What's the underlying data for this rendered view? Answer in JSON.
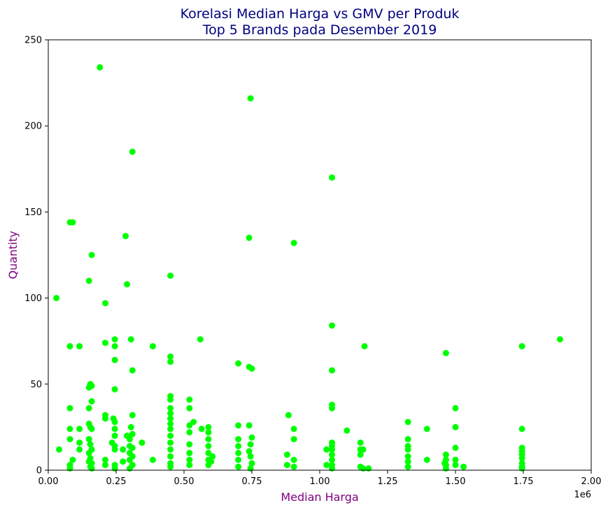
{
  "chart_data": {
    "type": "scatter",
    "title_line1": "Korelasi Median Harga vs GMV per Produk",
    "title_line2": "Top 5 Brands pada Desember 2019",
    "xlabel": "Median Harga",
    "ylabel": "Quantity",
    "x_offset_text": "1e6",
    "xlim": [
      0,
      2000000
    ],
    "ylim": [
      0,
      250
    ],
    "x_ticks": [
      0,
      250000,
      500000,
      750000,
      1000000,
      1250000,
      1500000,
      1750000,
      2000000
    ],
    "x_tick_labels": [
      "0.00",
      "0.25",
      "0.50",
      "0.75",
      "1.00",
      "1.25",
      "1.50",
      "1.75",
      "2.00"
    ],
    "y_ticks": [
      0,
      50,
      100,
      150,
      200,
      250
    ],
    "y_tick_labels": [
      "0",
      "50",
      "100",
      "150",
      "200",
      "250"
    ],
    "marker_color": "#00ff00",
    "grid": false,
    "points": [
      [
        190000,
        234
      ],
      [
        745000,
        216
      ],
      [
        310000,
        185
      ],
      [
        1045000,
        170
      ],
      [
        80000,
        144
      ],
      [
        90000,
        144
      ],
      [
        285000,
        136
      ],
      [
        740000,
        135
      ],
      [
        905000,
        132
      ],
      [
        160000,
        125
      ],
      [
        450000,
        113
      ],
      [
        150000,
        110
      ],
      [
        290000,
        108
      ],
      [
        30000,
        100
      ],
      [
        210000,
        97
      ],
      [
        1045000,
        84
      ],
      [
        1885000,
        76
      ],
      [
        1745000,
        72
      ],
      [
        1165000,
        72
      ],
      [
        1465000,
        68
      ],
      [
        80000,
        72
      ],
      [
        115000,
        72
      ],
      [
        210000,
        74
      ],
      [
        245000,
        76
      ],
      [
        245000,
        72
      ],
      [
        305000,
        76
      ],
      [
        385000,
        72
      ],
      [
        560000,
        76
      ],
      [
        245000,
        64
      ],
      [
        450000,
        66
      ],
      [
        450000,
        63
      ],
      [
        700000,
        62
      ],
      [
        740000,
        60
      ],
      [
        750000,
        59
      ],
      [
        310000,
        58
      ],
      [
        1045000,
        58
      ],
      [
        245000,
        47
      ],
      [
        155000,
        50
      ],
      [
        160000,
        49
      ],
      [
        150000,
        48
      ],
      [
        160000,
        40
      ],
      [
        80000,
        36
      ],
      [
        150000,
        36
      ],
      [
        210000,
        32
      ],
      [
        310000,
        32
      ],
      [
        450000,
        43
      ],
      [
        450000,
        41
      ],
      [
        450000,
        36
      ],
      [
        450000,
        33
      ],
      [
        450000,
        30
      ],
      [
        450000,
        27
      ],
      [
        450000,
        24
      ],
      [
        450000,
        20
      ],
      [
        450000,
        16
      ],
      [
        450000,
        12
      ],
      [
        450000,
        8
      ],
      [
        450000,
        4
      ],
      [
        450000,
        2
      ],
      [
        520000,
        41
      ],
      [
        520000,
        36
      ],
      [
        520000,
        26
      ],
      [
        535000,
        28
      ],
      [
        520000,
        22
      ],
      [
        520000,
        15
      ],
      [
        520000,
        10
      ],
      [
        520000,
        6
      ],
      [
        520000,
        3
      ],
      [
        565000,
        24
      ],
      [
        590000,
        25
      ],
      [
        590000,
        22
      ],
      [
        590000,
        18
      ],
      [
        590000,
        14
      ],
      [
        590000,
        10
      ],
      [
        590000,
        6
      ],
      [
        590000,
        3
      ],
      [
        600000,
        5
      ],
      [
        605000,
        8
      ],
      [
        700000,
        26
      ],
      [
        700000,
        18
      ],
      [
        700000,
        14
      ],
      [
        700000,
        10
      ],
      [
        700000,
        6
      ],
      [
        700000,
        2
      ],
      [
        740000,
        26
      ],
      [
        750000,
        19
      ],
      [
        745000,
        15
      ],
      [
        740000,
        11
      ],
      [
        745000,
        8
      ],
      [
        750000,
        4
      ],
      [
        745000,
        1
      ],
      [
        885000,
        32
      ],
      [
        905000,
        24
      ],
      [
        905000,
        18
      ],
      [
        880000,
        9
      ],
      [
        880000,
        3
      ],
      [
        905000,
        6
      ],
      [
        905000,
        2
      ],
      [
        1045000,
        38
      ],
      [
        1045000,
        36
      ],
      [
        1045000,
        16
      ],
      [
        1045000,
        14
      ],
      [
        1045000,
        12
      ],
      [
        1045000,
        9
      ],
      [
        1045000,
        6
      ],
      [
        1045000,
        3
      ],
      [
        1045000,
        1
      ],
      [
        1025000,
        12
      ],
      [
        1025000,
        3
      ],
      [
        1100000,
        23
      ],
      [
        1150000,
        16
      ],
      [
        1150000,
        12
      ],
      [
        1160000,
        12
      ],
      [
        1150000,
        9
      ],
      [
        1150000,
        2
      ],
      [
        1160000,
        1
      ],
      [
        1180000,
        1
      ],
      [
        1325000,
        28
      ],
      [
        1325000,
        18
      ],
      [
        1325000,
        14
      ],
      [
        1325000,
        12
      ],
      [
        1325000,
        8
      ],
      [
        1325000,
        5
      ],
      [
        1325000,
        2
      ],
      [
        1395000,
        24
      ],
      [
        1395000,
        6
      ],
      [
        1465000,
        9
      ],
      [
        1465000,
        6
      ],
      [
        1465000,
        3
      ],
      [
        1465000,
        1
      ],
      [
        1460000,
        4
      ],
      [
        1500000,
        36
      ],
      [
        1500000,
        25
      ],
      [
        1500000,
        13
      ],
      [
        1500000,
        6
      ],
      [
        1500000,
        3
      ],
      [
        1530000,
        2
      ],
      [
        1745000,
        24
      ],
      [
        1745000,
        13
      ],
      [
        1745000,
        11
      ],
      [
        1745000,
        9
      ],
      [
        1745000,
        7
      ],
      [
        1745000,
        4
      ],
      [
        1745000,
        2
      ],
      [
        1745000,
        1
      ],
      [
        80000,
        24
      ],
      [
        80000,
        18
      ],
      [
        80000,
        3
      ],
      [
        80000,
        1
      ],
      [
        90000,
        6
      ],
      [
        40000,
        12
      ],
      [
        115000,
        24
      ],
      [
        115000,
        16
      ],
      [
        115000,
        12
      ],
      [
        150000,
        27
      ],
      [
        155000,
        25
      ],
      [
        160000,
        24
      ],
      [
        150000,
        18
      ],
      [
        155000,
        15
      ],
      [
        160000,
        12
      ],
      [
        150000,
        10
      ],
      [
        155000,
        7
      ],
      [
        150000,
        5
      ],
      [
        160000,
        4
      ],
      [
        155000,
        2
      ],
      [
        160000,
        1
      ],
      [
        210000,
        30
      ],
      [
        210000,
        6
      ],
      [
        210000,
        3
      ],
      [
        240000,
        30
      ],
      [
        245000,
        28
      ],
      [
        245000,
        24
      ],
      [
        245000,
        20
      ],
      [
        235000,
        16
      ],
      [
        245000,
        14
      ],
      [
        245000,
        12
      ],
      [
        245000,
        3
      ],
      [
        245000,
        1
      ],
      [
        275000,
        12
      ],
      [
        275000,
        5
      ],
      [
        290000,
        20
      ],
      [
        305000,
        25
      ],
      [
        310000,
        21
      ],
      [
        300000,
        18
      ],
      [
        300000,
        14
      ],
      [
        310000,
        13
      ],
      [
        300000,
        10
      ],
      [
        310000,
        8
      ],
      [
        300000,
        6
      ],
      [
        310000,
        3
      ],
      [
        300000,
        1
      ],
      [
        345000,
        16
      ],
      [
        385000,
        6
      ]
    ]
  }
}
